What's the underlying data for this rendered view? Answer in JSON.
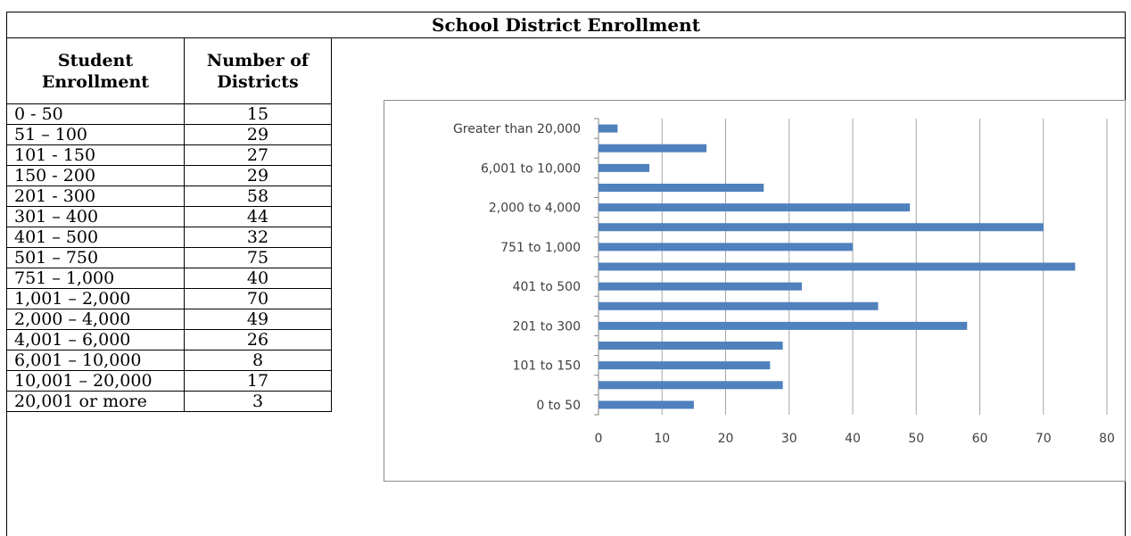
{
  "title": "School District Enrollment",
  "table": {
    "headers": [
      "Student Enrollment",
      "Number of Districts"
    ],
    "header_lines": [
      [
        "Student",
        "Enrollment"
      ],
      [
        "Number of",
        "Districts"
      ]
    ],
    "rows": [
      {
        "range": "0 - 50",
        "count": "15"
      },
      {
        "range": "51 – 100",
        "count": "29"
      },
      {
        "range": "101 - 150",
        "count": "27"
      },
      {
        "range": "150 - 200",
        "count": "29"
      },
      {
        "range": "201 - 300",
        "count": "58"
      },
      {
        "range": "301 – 400",
        "count": "44"
      },
      {
        "range": "401 – 500",
        "count": "32"
      },
      {
        "range": "501 – 750",
        "count": "75"
      },
      {
        "range": "751 – 1,000",
        "count": "40"
      },
      {
        "range": "1,001 – 2,000",
        "count": "70"
      },
      {
        "range": "2,000 – 4,000",
        "count": "49"
      },
      {
        "range": "4,001 – 6,000",
        "count": "26"
      },
      {
        "range": "6,001 – 10,000",
        "count": "8"
      },
      {
        "range": "10,001 – 20,000",
        "count": "17"
      },
      {
        "range": "20,001 or more",
        "count": "3"
      }
    ]
  },
  "chart_data": {
    "type": "bar",
    "orientation": "horizontal",
    "title": "",
    "xlabel": "",
    "ylabel": "",
    "categories": [
      "0 to 50",
      "",
      "101 to 150",
      "",
      "201 to 300",
      "",
      "401 to 500",
      "",
      "751 to 1,000",
      "",
      "2,000 to 4,000",
      "",
      "6,001 to 10,000",
      "",
      "Greater than 20,000"
    ],
    "values": [
      15,
      29,
      27,
      29,
      58,
      44,
      32,
      75,
      40,
      70,
      49,
      26,
      8,
      17,
      3
    ],
    "xlim": [
      0,
      80
    ],
    "xticks": [
      0,
      10,
      20,
      30,
      40,
      50,
      60,
      70,
      80
    ],
    "grid": true,
    "legend": "none",
    "bar_color": "#4f81bd"
  }
}
